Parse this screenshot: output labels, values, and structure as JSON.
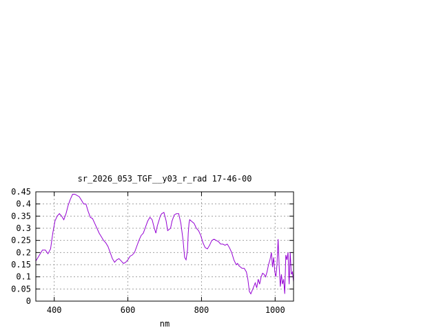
{
  "chart_data": {
    "type": "line",
    "title": "sr_2026_053_TGF__y03_r_rad 17-46-00",
    "xlabel": "nm",
    "ylabel": "",
    "xlim": [
      350,
      1050
    ],
    "ylim": [
      0,
      0.45
    ],
    "xticks": [
      "400",
      "600",
      "800",
      "1000"
    ],
    "yticks": [
      "0",
      "0.05",
      "0.1",
      "0.15",
      "0.2",
      "0.25",
      "0.3",
      "0.35",
      "0.4",
      "0.45"
    ],
    "grid": true,
    "line_color": "#9400d3",
    "series": [
      {
        "x": [
          350,
          360,
          368,
          376,
          383,
          390,
          396,
          402,
          408,
          414,
          420,
          426,
          432,
          438,
          444,
          450,
          456,
          462,
          468,
          474,
          480,
          486,
          492,
          498,
          504,
          510,
          516,
          522,
          528,
          534,
          540,
          546,
          552,
          558,
          564,
          570,
          576,
          582,
          588,
          594,
          600,
          606,
          612,
          618,
          624,
          630,
          636,
          642,
          648,
          654,
          660,
          666,
          672,
          676,
          680,
          684,
          688,
          692,
          698,
          704,
          708,
          712,
          716,
          720,
          726,
          732,
          738,
          744,
          750,
          754,
          758,
          762,
          764,
          766,
          768,
          772,
          776,
          780,
          786,
          792,
          798,
          804,
          810,
          816,
          822,
          828,
          834,
          840,
          846,
          852,
          858,
          864,
          870,
          876,
          882,
          888,
          894,
          898,
          902,
          906,
          910,
          916,
          922,
          926,
          930,
          934,
          938,
          942,
          946,
          950,
          954,
          958,
          962,
          966,
          970,
          974,
          978,
          982,
          986,
          990,
          993,
          996,
          999,
          1002,
          1005,
          1008,
          1011,
          1014,
          1017,
          1020,
          1023,
          1026,
          1029,
          1032,
          1035,
          1038,
          1041,
          1044,
          1047,
          1050
        ],
        "y": [
          0.165,
          0.19,
          0.21,
          0.21,
          0.195,
          0.215,
          0.28,
          0.33,
          0.35,
          0.36,
          0.35,
          0.335,
          0.36,
          0.395,
          0.42,
          0.44,
          0.44,
          0.435,
          0.43,
          0.415,
          0.4,
          0.4,
          0.37,
          0.345,
          0.34,
          0.32,
          0.3,
          0.28,
          0.265,
          0.25,
          0.24,
          0.225,
          0.2,
          0.175,
          0.16,
          0.17,
          0.175,
          0.165,
          0.155,
          0.16,
          0.17,
          0.185,
          0.19,
          0.2,
          0.225,
          0.25,
          0.27,
          0.28,
          0.305,
          0.33,
          0.345,
          0.335,
          0.3,
          0.28,
          0.31,
          0.33,
          0.35,
          0.36,
          0.365,
          0.33,
          0.29,
          0.295,
          0.3,
          0.33,
          0.355,
          0.36,
          0.36,
          0.32,
          0.25,
          0.18,
          0.17,
          0.21,
          0.28,
          0.32,
          0.335,
          0.33,
          0.325,
          0.32,
          0.3,
          0.29,
          0.27,
          0.24,
          0.22,
          0.215,
          0.23,
          0.25,
          0.255,
          0.25,
          0.245,
          0.235,
          0.235,
          0.23,
          0.235,
          0.22,
          0.2,
          0.17,
          0.15,
          0.155,
          0.145,
          0.14,
          0.135,
          0.135,
          0.12,
          0.09,
          0.04,
          0.03,
          0.045,
          0.06,
          0.075,
          0.055,
          0.09,
          0.07,
          0.1,
          0.115,
          0.11,
          0.1,
          0.12,
          0.15,
          0.17,
          0.2,
          0.14,
          0.18,
          0.12,
          0.1,
          0.15,
          0.255,
          0.14,
          0.06,
          0.11,
          0.07,
          0.09,
          0.03,
          0.19,
          0.17,
          0.2,
          0.07,
          0.2,
          0.11,
          0.12,
          0.08
        ]
      }
    ]
  }
}
